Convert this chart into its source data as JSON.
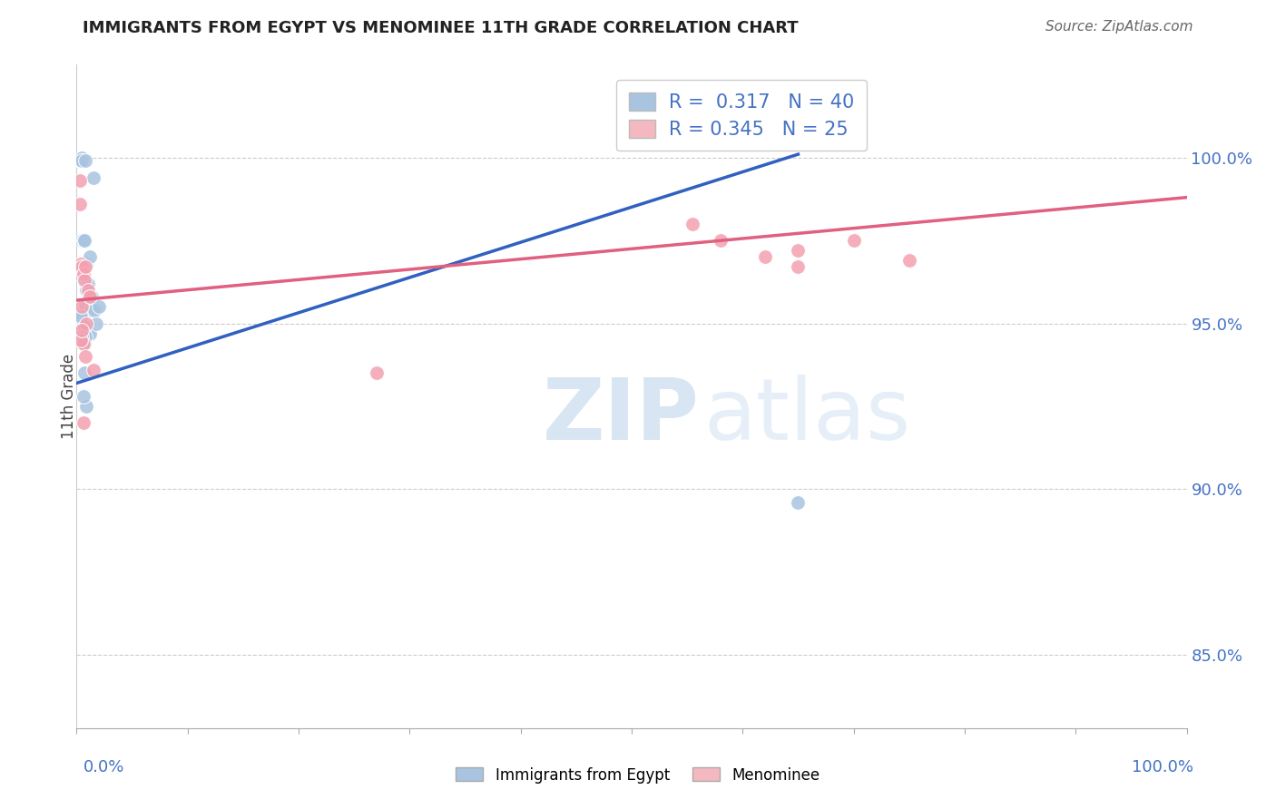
{
  "title": "IMMIGRANTS FROM EGYPT VS MENOMINEE 11TH GRADE CORRELATION CHART",
  "source": "Source: ZipAtlas.com",
  "ylabel": "11th Grade",
  "y_tick_labels": [
    "85.0%",
    "90.0%",
    "95.0%",
    "100.0%"
  ],
  "y_tick_values": [
    0.85,
    0.9,
    0.95,
    1.0
  ],
  "x_range": [
    0.0,
    1.0
  ],
  "y_range": [
    0.828,
    1.028
  ],
  "blue_R": 0.317,
  "blue_N": 40,
  "pink_R": 0.345,
  "pink_N": 25,
  "blue_color": "#a8c4e0",
  "pink_color": "#f4a0b0",
  "blue_line_color": "#3060c0",
  "pink_line_color": "#e06080",
  "legend_blue_color": "#a8c4e0",
  "legend_pink_color": "#f4b8c0",
  "blue_scatter_x": [
    0.003,
    0.004,
    0.005,
    0.005,
    0.005,
    0.005,
    0.005,
    0.006,
    0.006,
    0.006,
    0.007,
    0.007,
    0.007,
    0.007,
    0.008,
    0.008,
    0.008,
    0.009,
    0.009,
    0.009,
    0.01,
    0.01,
    0.011,
    0.012,
    0.012,
    0.013,
    0.014,
    0.015,
    0.016,
    0.018,
    0.02,
    0.004,
    0.003,
    0.004,
    0.006,
    0.007,
    0.008,
    0.005,
    0.006,
    0.65
  ],
  "blue_scatter_y": [
    0.999,
    0.999,
    1.0,
    0.999,
    0.975,
    0.965,
    0.952,
    0.975,
    0.968,
    0.95,
    0.975,
    0.964,
    0.944,
    0.935,
    0.999,
    0.963,
    0.955,
    0.968,
    0.96,
    0.925,
    0.962,
    0.947,
    0.958,
    0.97,
    0.947,
    0.954,
    0.958,
    0.994,
    0.954,
    0.95,
    0.955,
    0.967,
    0.965,
    0.952,
    0.967,
    0.949,
    0.946,
    0.946,
    0.928,
    0.896
  ],
  "pink_scatter_x": [
    0.003,
    0.004,
    0.005,
    0.005,
    0.006,
    0.006,
    0.007,
    0.008,
    0.008,
    0.009,
    0.01,
    0.012,
    0.015,
    0.004,
    0.005,
    0.27,
    0.555,
    0.58,
    0.62,
    0.65,
    0.65,
    0.7,
    0.75,
    0.003,
    0.006
  ],
  "pink_scatter_y": [
    0.986,
    0.968,
    0.967,
    0.955,
    0.965,
    0.944,
    0.963,
    0.967,
    0.94,
    0.95,
    0.96,
    0.958,
    0.936,
    0.945,
    0.948,
    0.935,
    0.98,
    0.975,
    0.97,
    0.972,
    0.967,
    0.975,
    0.969,
    0.993,
    0.92
  ],
  "watermark_zip": "ZIP",
  "watermark_atlas": "atlas",
  "blue_trend_x": [
    0.0,
    0.65
  ],
  "blue_trend_y": [
    0.932,
    1.001
  ],
  "pink_trend_x": [
    0.0,
    1.0
  ],
  "pink_trend_y": [
    0.957,
    0.988
  ]
}
